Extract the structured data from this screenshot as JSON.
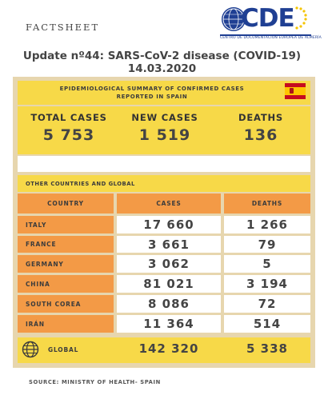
{
  "header": {
    "factsheet_label": "FACTSHEET",
    "logo": {
      "letters": "CDE",
      "subtitle": "CENTRO DE DOCUMENTACIÓN EUROPEA DE ALMERÍA"
    }
  },
  "title": {
    "line1": "Update nº44: SARS-CoV-2 disease (COVID-19)",
    "line2": "14.03.2020"
  },
  "epidemiological": {
    "banner_line1": "EPIDEMIOLOGICAL SUMMARY OF CONFIRMED CASES",
    "banner_line2": "REPORTED IN SPAIN",
    "flag_icon": "spain-flag-icon",
    "total_cases_label": "TOTAL CASES",
    "total_cases_value": "5 753",
    "new_cases_label": "NEW CASES",
    "new_cases_value": "1 519",
    "deaths_label": "DEATHS",
    "deaths_value": "136"
  },
  "other": {
    "banner": "OTHER COUNTRIES AND GLOBAL",
    "columns": [
      "COUNTRY",
      "CASES",
      "DEATHS"
    ],
    "rows": [
      {
        "country": "ITALY",
        "cases": "17 660",
        "deaths": "1 266"
      },
      {
        "country": "FRANCE",
        "cases": "3 661",
        "deaths": "79"
      },
      {
        "country": "GERMANY",
        "cases": "3 062",
        "deaths": "5"
      },
      {
        "country": "CHINA",
        "cases": "81 021",
        "deaths": "3 194"
      },
      {
        "country": "SOUTH COREA",
        "cases": "8 086",
        "deaths": "72"
      },
      {
        "country": "IRÁN",
        "cases": "11 364",
        "deaths": "514"
      }
    ],
    "global": {
      "icon": "globe-icon",
      "label": "GLOBAL",
      "cases": "142 320",
      "deaths": "5 338"
    }
  },
  "source": "SOURCE: MINISTRY OF HEALTH- SPAIN",
  "colors": {
    "yellow": "#f7d948",
    "orange": "#f39a46",
    "frame": "#e7d6ae",
    "brand_blue": "#1f3f93"
  }
}
